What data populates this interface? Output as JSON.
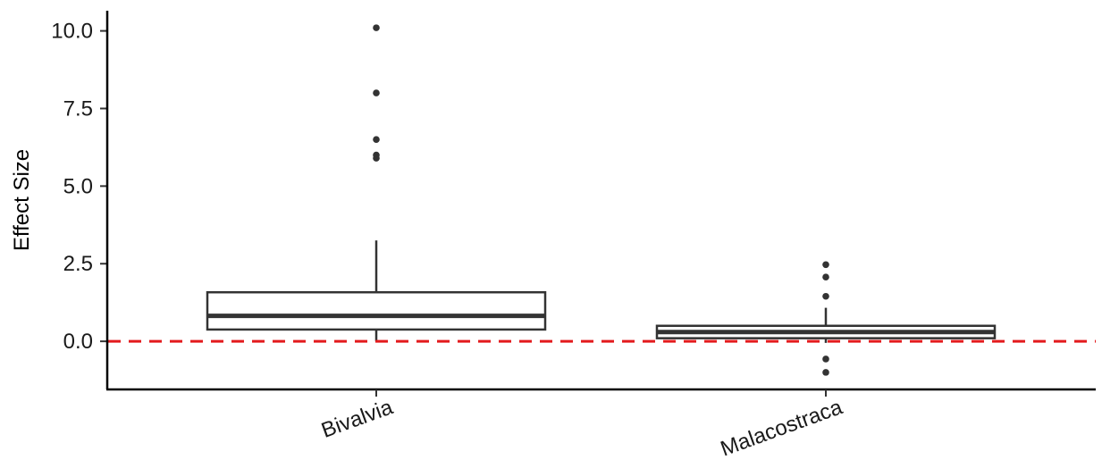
{
  "chart_data": {
    "type": "boxplot",
    "title": "",
    "xlabel": "",
    "ylabel": "Effect Size",
    "ylim": [
      -1.55,
      10.65
    ],
    "yticks": [
      0.0,
      2.5,
      5.0,
      7.5,
      10.0
    ],
    "ytick_labels": [
      "0.0",
      "2.5",
      "5.0",
      "7.5",
      "10.0"
    ],
    "categories": [
      "Bivalvia",
      "Malacostraca"
    ],
    "boxes": [
      {
        "category": "Bivalvia",
        "whisker_low": 0.0,
        "q1": 0.38,
        "median": 0.82,
        "q3": 1.58,
        "whisker_high": 3.25,
        "outliers": [
          10.1,
          8.0,
          6.5,
          6.0,
          5.9
        ]
      },
      {
        "category": "Malacostraca",
        "whisker_low": -0.05,
        "q1": 0.1,
        "median": 0.3,
        "q3": 0.5,
        "whisker_high": 1.08,
        "outliers": [
          2.47,
          2.07,
          1.45,
          -0.57,
          -1.0
        ]
      }
    ],
    "reference_line": {
      "y": 0.0,
      "style": "dashed",
      "color": "#e31a1c"
    },
    "grid": false,
    "legend": "none",
    "colors": {
      "box_stroke": "#333333",
      "box_fill": "#ffffff",
      "axis": "#000000"
    }
  }
}
